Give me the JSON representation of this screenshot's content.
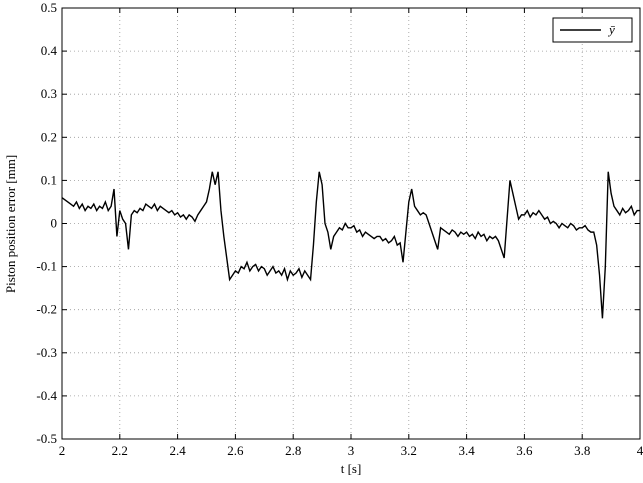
{
  "chart_data": {
    "type": "line",
    "xlabel": "t [s]",
    "ylabel": "Piston position error [mm]",
    "xlim": [
      2,
      4
    ],
    "ylim": [
      -0.5,
      0.5
    ],
    "xticks": [
      2,
      2.2,
      2.4,
      2.6,
      2.8,
      3,
      3.2,
      3.4,
      3.6,
      3.8,
      4
    ],
    "yticks": [
      -0.5,
      -0.4,
      -0.3,
      -0.2,
      -0.1,
      0,
      0.1,
      0.2,
      0.3,
      0.4,
      0.5
    ],
    "grid": true,
    "legend": "upper right",
    "x": [
      2.0,
      2.01,
      2.02,
      2.03,
      2.04,
      2.05,
      2.06,
      2.07,
      2.08,
      2.09,
      2.1,
      2.11,
      2.12,
      2.13,
      2.14,
      2.15,
      2.16,
      2.17,
      2.18,
      2.19,
      2.2,
      2.21,
      2.22,
      2.23,
      2.24,
      2.25,
      2.26,
      2.27,
      2.28,
      2.29,
      2.3,
      2.31,
      2.32,
      2.33,
      2.34,
      2.35,
      2.36,
      2.37,
      2.38,
      2.39,
      2.4,
      2.41,
      2.42,
      2.43,
      2.44,
      2.45,
      2.46,
      2.47,
      2.48,
      2.49,
      2.5,
      2.51,
      2.52,
      2.53,
      2.54,
      2.55,
      2.56,
      2.57,
      2.58,
      2.59,
      2.6,
      2.61,
      2.62,
      2.63,
      2.64,
      2.65,
      2.66,
      2.67,
      2.68,
      2.69,
      2.7,
      2.71,
      2.72,
      2.73,
      2.74,
      2.75,
      2.76,
      2.77,
      2.78,
      2.79,
      2.8,
      2.81,
      2.82,
      2.83,
      2.84,
      2.85,
      2.86,
      2.87,
      2.88,
      2.89,
      2.9,
      2.91,
      2.92,
      2.93,
      2.94,
      2.95,
      2.96,
      2.97,
      2.98,
      2.99,
      3.0,
      3.01,
      3.02,
      3.03,
      3.04,
      3.05,
      3.06,
      3.07,
      3.08,
      3.09,
      3.1,
      3.11,
      3.12,
      3.13,
      3.14,
      3.15,
      3.16,
      3.17,
      3.18,
      3.19,
      3.2,
      3.21,
      3.22,
      3.23,
      3.24,
      3.25,
      3.26,
      3.27,
      3.28,
      3.29,
      3.3,
      3.31,
      3.32,
      3.33,
      3.34,
      3.35,
      3.36,
      3.37,
      3.38,
      3.39,
      3.4,
      3.41,
      3.42,
      3.43,
      3.44,
      3.45,
      3.46,
      3.47,
      3.48,
      3.49,
      3.5,
      3.51,
      3.52,
      3.53,
      3.54,
      3.55,
      3.56,
      3.57,
      3.58,
      3.59,
      3.6,
      3.61,
      3.62,
      3.63,
      3.64,
      3.65,
      3.66,
      3.67,
      3.68,
      3.69,
      3.7,
      3.71,
      3.72,
      3.73,
      3.74,
      3.75,
      3.76,
      3.77,
      3.78,
      3.79,
      3.8,
      3.81,
      3.82,
      3.83,
      3.84,
      3.85,
      3.86,
      3.87,
      3.88,
      3.89,
      3.9,
      3.91,
      3.92,
      3.93,
      3.94,
      3.95,
      3.96,
      3.97,
      3.98,
      3.99,
      4.0
    ],
    "series": [
      {
        "name": "ȳ",
        "color": "#000000",
        "values": [
          0.06,
          0.055,
          0.05,
          0.045,
          0.04,
          0.05,
          0.035,
          0.045,
          0.03,
          0.04,
          0.035,
          0.045,
          0.03,
          0.04,
          0.035,
          0.05,
          0.03,
          0.04,
          0.08,
          -0.03,
          0.03,
          0.01,
          0.0,
          -0.06,
          0.02,
          0.03,
          0.025,
          0.035,
          0.03,
          0.045,
          0.04,
          0.035,
          0.045,
          0.03,
          0.04,
          0.035,
          0.03,
          0.025,
          0.03,
          0.02,
          0.025,
          0.015,
          0.02,
          0.01,
          0.02,
          0.015,
          0.005,
          0.02,
          0.03,
          0.04,
          0.05,
          0.08,
          0.12,
          0.09,
          0.12,
          0.03,
          -0.03,
          -0.08,
          -0.13,
          -0.12,
          -0.11,
          -0.115,
          -0.1,
          -0.105,
          -0.09,
          -0.11,
          -0.1,
          -0.095,
          -0.11,
          -0.1,
          -0.105,
          -0.12,
          -0.11,
          -0.1,
          -0.115,
          -0.11,
          -0.12,
          -0.105,
          -0.13,
          -0.11,
          -0.12,
          -0.115,
          -0.105,
          -0.125,
          -0.11,
          -0.12,
          -0.13,
          -0.05,
          0.05,
          0.12,
          0.09,
          0.0,
          -0.02,
          -0.06,
          -0.03,
          -0.02,
          -0.01,
          -0.015,
          0.0,
          -0.01,
          -0.01,
          -0.005,
          -0.02,
          -0.015,
          -0.03,
          -0.02,
          -0.025,
          -0.03,
          -0.035,
          -0.03,
          -0.03,
          -0.04,
          -0.035,
          -0.045,
          -0.04,
          -0.03,
          -0.05,
          -0.045,
          -0.09,
          -0.02,
          0.05,
          0.08,
          0.04,
          0.03,
          0.02,
          0.025,
          0.02,
          0.0,
          -0.02,
          -0.04,
          -0.06,
          -0.01,
          -0.015,
          -0.02,
          -0.025,
          -0.015,
          -0.02,
          -0.03,
          -0.02,
          -0.025,
          -0.02,
          -0.03,
          -0.025,
          -0.035,
          -0.02,
          -0.03,
          -0.025,
          -0.04,
          -0.03,
          -0.035,
          -0.03,
          -0.04,
          -0.06,
          -0.08,
          0.01,
          0.1,
          0.07,
          0.04,
          0.01,
          0.02,
          0.02,
          0.03,
          0.015,
          0.025,
          0.02,
          0.03,
          0.02,
          0.01,
          0.015,
          0.0,
          0.005,
          0.0,
          -0.01,
          0.0,
          -0.005,
          -0.01,
          0.0,
          -0.005,
          -0.015,
          -0.01,
          -0.01,
          -0.005,
          -0.015,
          -0.02,
          -0.02,
          -0.05,
          -0.12,
          -0.22,
          -0.1,
          0.12,
          0.07,
          0.04,
          0.03,
          0.02,
          0.035,
          0.025,
          0.03,
          0.04,
          0.02,
          0.03,
          0.03
        ]
      }
    ]
  }
}
